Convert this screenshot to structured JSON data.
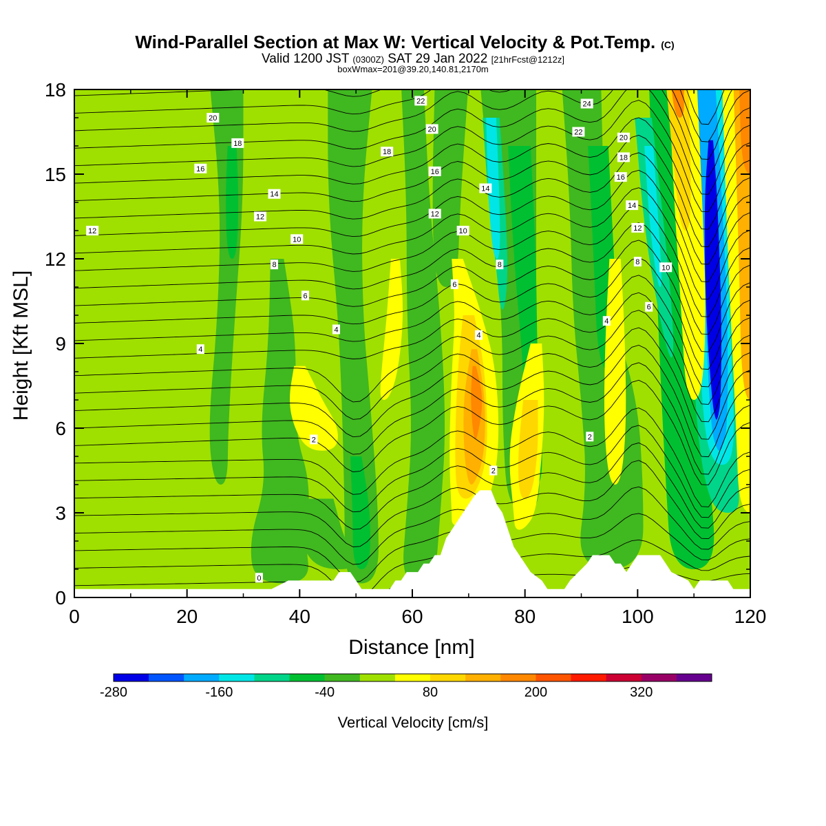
{
  "title": {
    "main": "Wind-Parallel Section at Max W: Vertical Velocity & Pot.Temp.",
    "main_suffix": "(C)",
    "valid_prefix": "Valid 1200 JST",
    "valid_zone": "(0300Z)",
    "valid_date": "SAT 29 Jan 2022",
    "valid_fcst": "[21hrFcst@1212z]",
    "box_line": "boxWmax=201@39.20,140.81,2170m"
  },
  "chart_data": {
    "type": "heatmap",
    "xlabel": "Distance [nm]",
    "ylabel": "Height [Kft MSL]",
    "xlim": [
      0,
      120
    ],
    "ylim": [
      0,
      18
    ],
    "x_ticks": [
      "0",
      "20",
      "40",
      "60",
      "80",
      "100",
      "120"
    ],
    "y_ticks": [
      "0",
      "3",
      "6",
      "9",
      "12",
      "15",
      "18"
    ],
    "colorbar": {
      "label": "Vertical Velocity [cm/s]",
      "tick_labels": [
        "-280",
        "-160",
        "-40",
        "80",
        "200",
        "320"
      ],
      "colors": [
        "#0000e6",
        "#0055ff",
        "#00aaff",
        "#00e6e6",
        "#00d58a",
        "#00c032",
        "#40b820",
        "#9fe000",
        "#ffff00",
        "#ffd700",
        "#ffb000",
        "#ff8800",
        "#ff5500",
        "#ff1a00",
        "#cc0033",
        "#990066",
        "#66008f"
      ]
    },
    "fill_colors": {
      "background": "#9fe000",
      "light_green": "#40b820",
      "green": "#00c032",
      "teal": "#00d58a",
      "cyan": "#00e6e6",
      "sky": "#00aaff",
      "blue": "#0000e6",
      "yellow": "#ffff00",
      "gold": "#ffd700",
      "amber": "#ffb000",
      "orange": "#ff8800",
      "terrain": "#ffffff"
    },
    "vertical_velocity_features": [
      {
        "kind": "updraft",
        "x_center": 71,
        "z_center": 7.5,
        "max_category": "orange"
      },
      {
        "kind": "downdraft",
        "x_center": 113,
        "z_center": 11,
        "min_category": "blue"
      },
      {
        "kind": "downdraft",
        "x_center": 75,
        "z_center": 15,
        "min_category": "cyan"
      },
      {
        "kind": "updraft",
        "x_center": 119,
        "z_center": 14,
        "max_category": "orange"
      }
    ],
    "terrain_profile_kft": [
      [
        0,
        0.3
      ],
      [
        5,
        0.3
      ],
      [
        10,
        0.3
      ],
      [
        15,
        0.3
      ],
      [
        20,
        0.3
      ],
      [
        25,
        0.3
      ],
      [
        30,
        0.3
      ],
      [
        35,
        0.3
      ],
      [
        38,
        0.6
      ],
      [
        41,
        0.6
      ],
      [
        46,
        0.6
      ],
      [
        47,
        0.9
      ],
      [
        49,
        0.9
      ],
      [
        50,
        0.6
      ],
      [
        51,
        0.3
      ],
      [
        56,
        0.3
      ],
      [
        57,
        0.6
      ],
      [
        58,
        0.6
      ],
      [
        59,
        0.9
      ],
      [
        61,
        0.9
      ],
      [
        62,
        1.2
      ],
      [
        63,
        1.2
      ],
      [
        64,
        1.5
      ],
      [
        65,
        1.5
      ],
      [
        66,
        2.1
      ],
      [
        67,
        2.4
      ],
      [
        68,
        2.7
      ],
      [
        69,
        3.0
      ],
      [
        70,
        3.3
      ],
      [
        71,
        3.6
      ],
      [
        72,
        3.8
      ],
      [
        74,
        3.8
      ],
      [
        75,
        3.3
      ],
      [
        76,
        3.0
      ],
      [
        77,
        2.4
      ],
      [
        78,
        1.8
      ],
      [
        79,
        1.5
      ],
      [
        80,
        1.2
      ],
      [
        81,
        0.9
      ],
      [
        83,
        0.6
      ],
      [
        84,
        0.3
      ],
      [
        87,
        0.3
      ],
      [
        88,
        0.6
      ],
      [
        91,
        1.2
      ],
      [
        92,
        1.5
      ],
      [
        95,
        1.5
      ],
      [
        96,
        1.2
      ],
      [
        97,
        1.2
      ],
      [
        98,
        0.9
      ],
      [
        99,
        1.2
      ],
      [
        100,
        1.5
      ],
      [
        104,
        1.5
      ],
      [
        105,
        1.2
      ],
      [
        106,
        0.9
      ],
      [
        109,
        0.6
      ],
      [
        110,
        0.3
      ],
      [
        111,
        0.6
      ],
      [
        116,
        0.6
      ],
      [
        117,
        0.3
      ],
      [
        120,
        0.3
      ]
    ],
    "contour_labels": [
      {
        "text": "20",
        "x": 24.6,
        "z": 17.0
      },
      {
        "text": "18",
        "x": 29.0,
        "z": 16.1
      },
      {
        "text": "16",
        "x": 22.4,
        "z": 15.2
      },
      {
        "text": "14",
        "x": 35.5,
        "z": 14.3
      },
      {
        "text": "12",
        "x": 33.0,
        "z": 13.5
      },
      {
        "text": "12",
        "x": 3.2,
        "z": 13.0
      },
      {
        "text": "10",
        "x": 39.5,
        "z": 12.7
      },
      {
        "text": "8",
        "x": 35.5,
        "z": 11.8
      },
      {
        "text": "6",
        "x": 41.0,
        "z": 10.7
      },
      {
        "text": "4",
        "x": 46.5,
        "z": 9.5
      },
      {
        "text": "4",
        "x": 22.4,
        "z": 8.8
      },
      {
        "text": "2",
        "x": 42.5,
        "z": 5.6
      },
      {
        "text": "0",
        "x": 32.8,
        "z": 0.7
      },
      {
        "text": "22",
        "x": 61.5,
        "z": 17.6
      },
      {
        "text": "20",
        "x": 63.5,
        "z": 16.6
      },
      {
        "text": "18",
        "x": 55.5,
        "z": 15.8
      },
      {
        "text": "16",
        "x": 64.0,
        "z": 15.1
      },
      {
        "text": "14",
        "x": 73.0,
        "z": 14.5
      },
      {
        "text": "12",
        "x": 64.0,
        "z": 13.6
      },
      {
        "text": "10",
        "x": 69.0,
        "z": 13.0
      },
      {
        "text": "8",
        "x": 75.5,
        "z": 11.8
      },
      {
        "text": "6",
        "x": 67.5,
        "z": 11.1
      },
      {
        "text": "4",
        "x": 71.8,
        "z": 9.3
      },
      {
        "text": "2",
        "x": 74.4,
        "z": 4.5
      },
      {
        "text": "24",
        "x": 91.0,
        "z": 17.5
      },
      {
        "text": "22",
        "x": 89.5,
        "z": 16.5
      },
      {
        "text": "20",
        "x": 97.5,
        "z": 16.3
      },
      {
        "text": "18",
        "x": 97.5,
        "z": 15.6
      },
      {
        "text": "16",
        "x": 97.0,
        "z": 14.9
      },
      {
        "text": "14",
        "x": 99.0,
        "z": 13.9
      },
      {
        "text": "12",
        "x": 100.0,
        "z": 13.1
      },
      {
        "text": "8",
        "x": 100.0,
        "z": 11.9
      },
      {
        "text": "10",
        "x": 105.0,
        "z": 11.7
      },
      {
        "text": "6",
        "x": 102.0,
        "z": 10.3
      },
      {
        "text": "4",
        "x": 94.5,
        "z": 9.8
      },
      {
        "text": "2",
        "x": 91.5,
        "z": 5.7
      }
    ]
  }
}
